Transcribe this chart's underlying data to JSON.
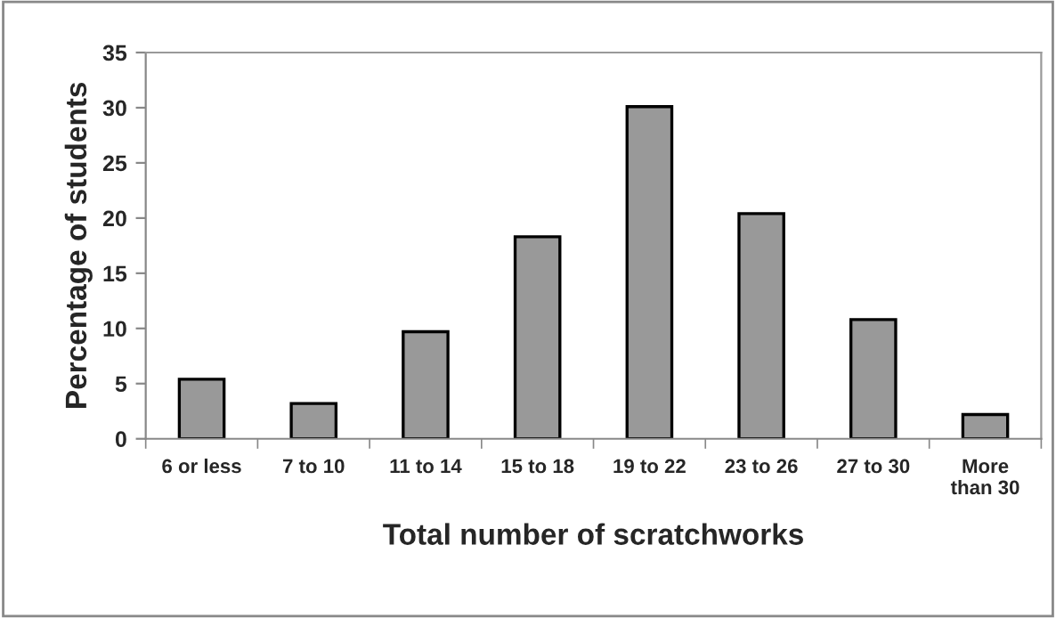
{
  "chart_data": {
    "type": "bar",
    "xlabel": "Total number of scratchworks",
    "ylabel": "Percentage of students",
    "categories": [
      "6 or less",
      "7 to 10",
      "11 to 14",
      "15 to 18",
      "19 to 22",
      "23 to 26",
      "27 to 30",
      "More\nthan 30"
    ],
    "values": [
      5.4,
      3.2,
      9.7,
      18.3,
      30.1,
      20.4,
      10.8,
      2.2
    ],
    "color": "#999999",
    "ylim": [
      0,
      35
    ],
    "yticks": [
      0,
      5,
      10,
      15,
      20,
      25,
      30,
      35
    ],
    "grid": false,
    "legend": false
  }
}
